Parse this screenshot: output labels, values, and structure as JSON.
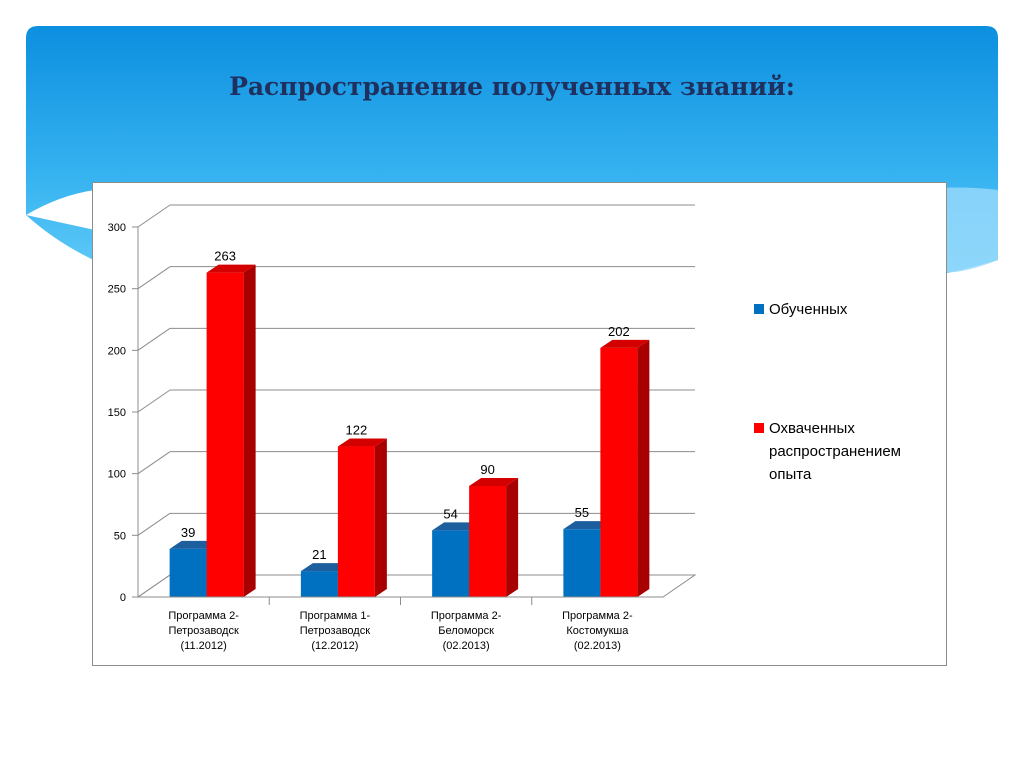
{
  "slide": {
    "title": "Распространение полученных знаний:"
  },
  "chart_data": {
    "type": "bar",
    "title": "",
    "xlabel": "",
    "ylabel": "",
    "ylim": [
      0,
      300
    ],
    "yticks": [
      0,
      50,
      100,
      150,
      200,
      250,
      300
    ],
    "categories": [
      [
        "Программа 2-",
        "Петрозаводск",
        "(11.2012)"
      ],
      [
        "Программа 1-",
        "Петрозаводск",
        "(12.2012)"
      ],
      [
        "Программа 2-",
        "Беломорск",
        "(02.2013)"
      ],
      [
        "Программа 2-",
        "Костомукша",
        "(02.2013)"
      ]
    ],
    "series": [
      {
        "name": "Обученных",
        "legend_lines": [
          "Обученных"
        ],
        "values": [
          39,
          21,
          54,
          55
        ],
        "color": "#0070C0",
        "side": "#0a4f8a",
        "top": "#1d5f9e"
      },
      {
        "name": "Охваченных распространением опыта",
        "legend_lines": [
          "Охваченных",
          "распространением",
          "опыта"
        ],
        "values": [
          263,
          122,
          90,
          202
        ],
        "color": "#FF0000",
        "side": "#a80000",
        "top": "#d40000"
      }
    ],
    "grid": true,
    "legend_position": "right",
    "style": "3d-clustered-column"
  }
}
